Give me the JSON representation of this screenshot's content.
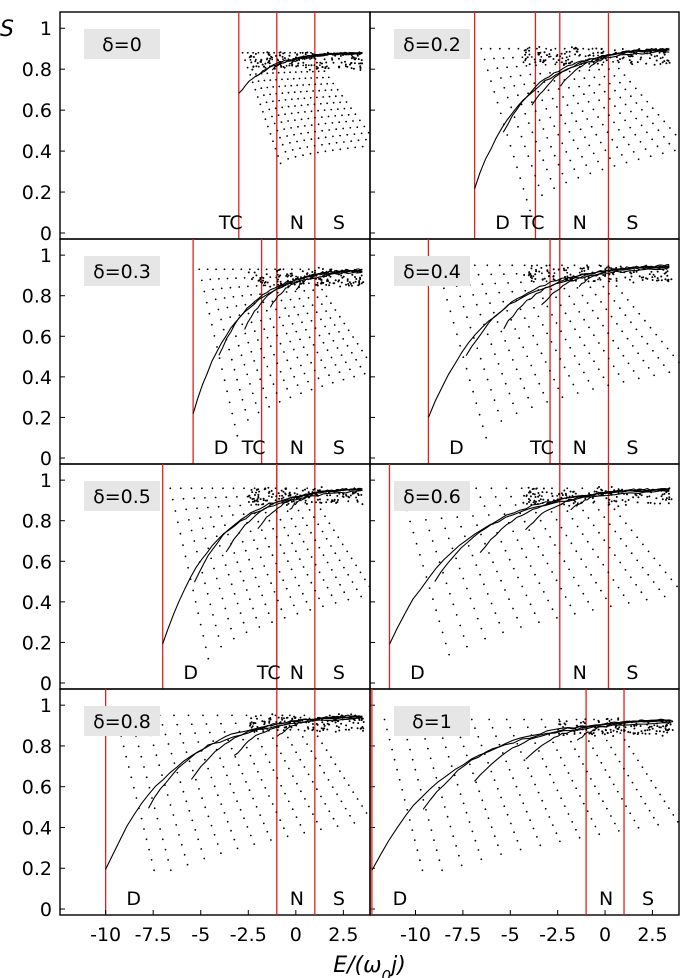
{
  "chart_data": {
    "type": "scatter",
    "ylabel": "S",
    "xlabel": "E/(ω0j)",
    "x_ticks": [
      "-10",
      "-7.5",
      "-5",
      "-2.5",
      "0",
      "2.5"
    ],
    "y_ticks": [
      "0",
      "0.2",
      "0.4",
      "0.6",
      "0.8",
      "1"
    ],
    "xlim": [
      -12.4,
      3.9
    ],
    "ylim": [
      0,
      1.05
    ],
    "grid": false,
    "panels": [
      {
        "delta_label": "δ=0",
        "delta": 0,
        "xlim": [
          -12.4,
          3.9
        ],
        "markers": [
          {
            "label": "TC",
            "x": -3.0
          },
          {
            "label": "N",
            "x": -1.0
          },
          {
            "label": "S",
            "x": 1.0
          }
        ],
        "curve": {
          "min_x": -3.0,
          "min_s": 0.68,
          "plateau_s": 0.88
        },
        "fan_bottom": 0.04
      },
      {
        "delta_label": "δ=0.2",
        "delta": 0.2,
        "xlim": [
          -8.8,
          3.9
        ],
        "markers": [
          {
            "label": "D",
            "x": -4.5
          },
          {
            "label": "TC",
            "x": -2.0
          },
          {
            "label": "N",
            "x": -1.0
          },
          {
            "label": "S",
            "x": 1.0
          }
        ],
        "curve": {
          "min_x": -4.5,
          "min_s": 0.22,
          "plateau_s": 0.9
        },
        "fan_bottom": 0.05
      },
      {
        "delta_label": "δ=0.3",
        "delta": 0.3,
        "xlim": [
          -12.4,
          3.9
        ],
        "markers": [
          {
            "label": "D",
            "x": -5.4
          },
          {
            "label": "TC",
            "x": -1.8
          },
          {
            "label": "N",
            "x": -1.0
          },
          {
            "label": "S",
            "x": 1.0
          }
        ],
        "curve": {
          "min_x": -5.4,
          "min_s": 0.22,
          "plateau_s": 0.93
        },
        "fan_bottom": 0.08
      },
      {
        "delta_label": "δ=0.4",
        "delta": 0.4,
        "xlim": [
          -8.8,
          3.9
        ],
        "markers": [
          {
            "label": "D",
            "x": -6.4
          },
          {
            "label": "TC",
            "x": -1.4
          },
          {
            "label": "N",
            "x": -1.0
          },
          {
            "label": "S",
            "x": 1.0
          }
        ],
        "curve": {
          "min_x": -6.4,
          "min_s": 0.2,
          "plateau_s": 0.95
        },
        "fan_bottom": 0.1
      },
      {
        "delta_label": "δ=0.5",
        "delta": 0.5,
        "xlim": [
          -12.4,
          3.9
        ],
        "markers": [
          {
            "label": "D",
            "x": -7.0
          },
          {
            "label": "TC",
            "x": -1.0
          },
          {
            "label": "N",
            "x": -1.0
          },
          {
            "label": "S",
            "x": 1.0
          }
        ],
        "curve": {
          "min_x": -7.0,
          "min_s": 0.19,
          "plateau_s": 0.96
        },
        "fan_bottom": 0.12
      },
      {
        "delta_label": "δ=0.6",
        "delta": 0.6,
        "xlim": [
          -8.8,
          3.9
        ],
        "markers": [
          {
            "label": "D",
            "x": -8.0
          },
          {
            "label": "N",
            "x": -1.0
          },
          {
            "label": "S",
            "x": 1.0
          }
        ],
        "curve": {
          "min_x": -8.0,
          "min_s": 0.19,
          "plateau_s": 0.96
        },
        "fan_bottom": 0.14
      },
      {
        "delta_label": "δ=0.8",
        "delta": 0.8,
        "xlim": [
          -12.4,
          3.9
        ],
        "markers": [
          {
            "label": "D",
            "x": -10.0
          },
          {
            "label": "N",
            "x": -1.0
          },
          {
            "label": "S",
            "x": 1.0
          }
        ],
        "curve": {
          "min_x": -10.0,
          "min_s": 0.19,
          "plateau_s": 0.95
        },
        "fan_bottom": 0.19
      },
      {
        "delta_label": "δ=1",
        "delta": 1.0,
        "xlim": [
          -12.4,
          3.9
        ],
        "markers": [
          {
            "label": "D",
            "x": -12.3
          },
          {
            "label": "N",
            "x": -1.0
          },
          {
            "label": "S",
            "x": 1.0
          }
        ],
        "curve": {
          "min_x": -12.3,
          "min_s": 0.19,
          "plateau_s": 0.93
        },
        "fan_bottom": 0.19
      }
    ],
    "colors": {
      "marker_line": "#e02020",
      "data": "#000000",
      "label_box": "#e6e6e6",
      "frame": "#000000"
    }
  }
}
